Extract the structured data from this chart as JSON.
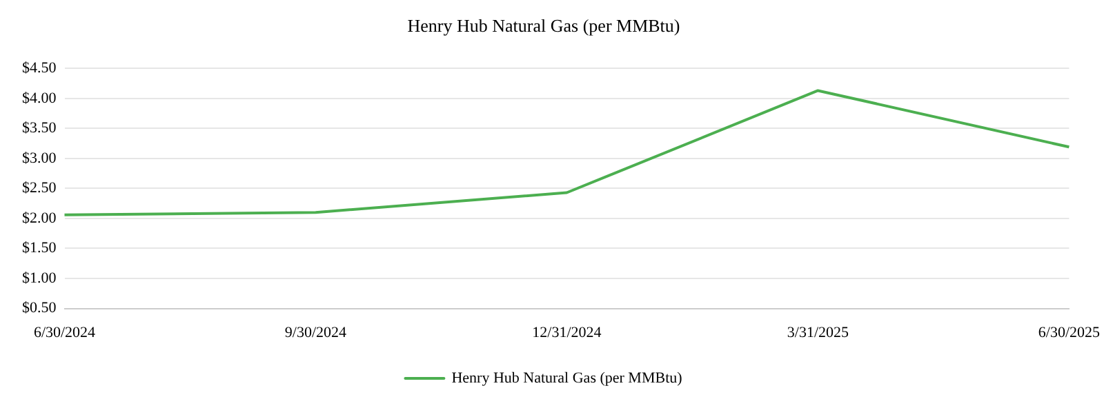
{
  "chart_data": {
    "type": "line",
    "title": "Henry Hub Natural Gas (per MMBtu)",
    "categories": [
      "6/30/2024",
      "9/30/2024",
      "12/31/2024",
      "3/31/2025",
      "6/30/2025"
    ],
    "series": [
      {
        "name": "Henry Hub Natural Gas (per MMBtu)",
        "color": "#4caf50",
        "values": [
          2.06,
          2.1,
          2.43,
          4.13,
          3.19
        ]
      }
    ],
    "ylim": [
      0.5,
      4.5
    ],
    "yticks": [
      {
        "value": 0.5,
        "label": "$0.50"
      },
      {
        "value": 1,
        "label": "$1.00"
      },
      {
        "value": 1.5,
        "label": "$1.50"
      },
      {
        "value": 2,
        "label": "$2.00"
      },
      {
        "value": 2.5,
        "label": "$2.50"
      },
      {
        "value": 3,
        "label": "$3.00"
      },
      {
        "value": 3.5,
        "label": "$3.50"
      },
      {
        "value": 4,
        "label": "$4.00"
      },
      {
        "value": 4.5,
        "label": "$4.50"
      }
    ],
    "grid": "y",
    "legend": "bottom",
    "marker": "none",
    "line_style": "solid"
  }
}
